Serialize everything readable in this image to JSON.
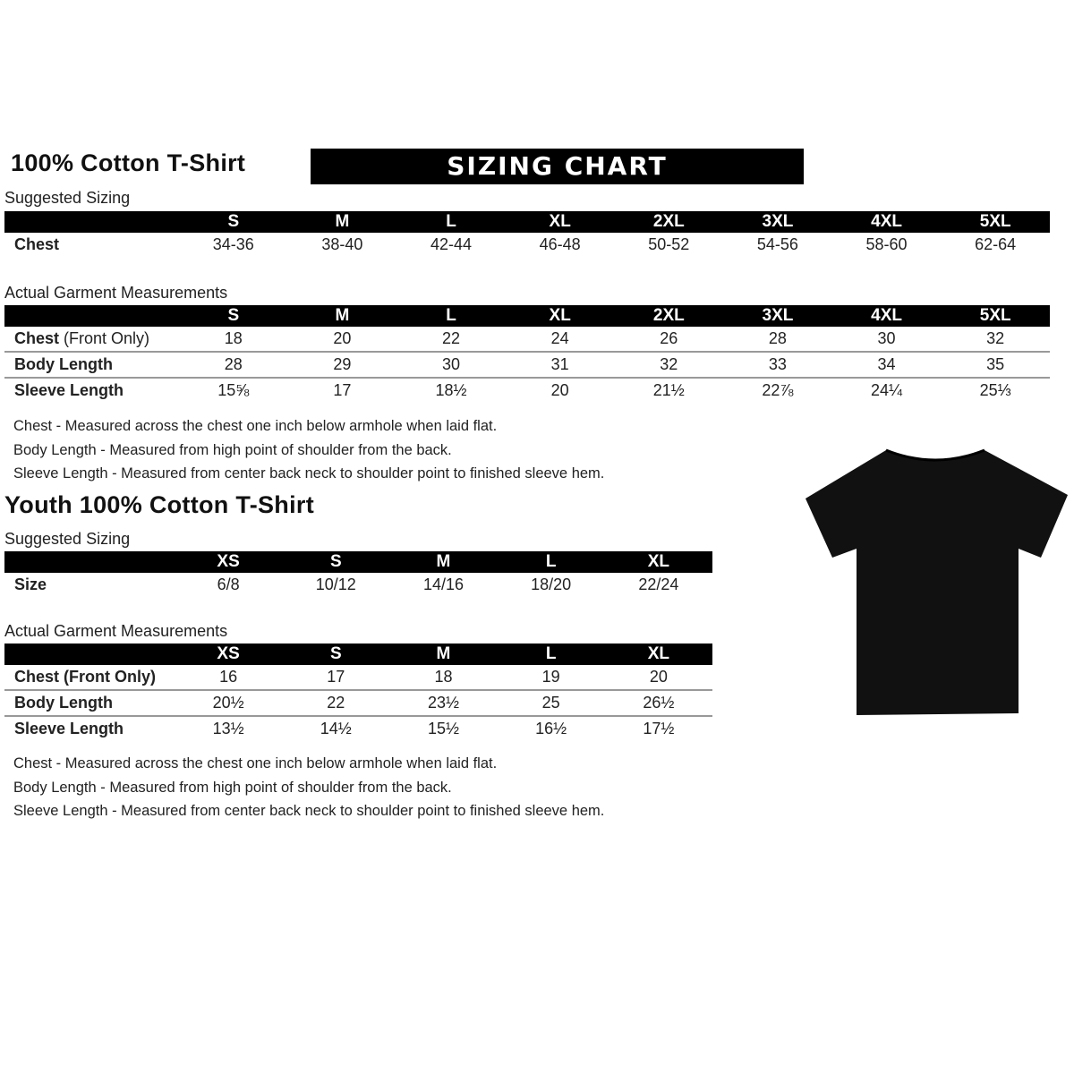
{
  "banner": "SIZING CHART",
  "adult": {
    "title": "100% Cotton T-Shirt",
    "suggested_label": "Suggested Sizing",
    "sizes": [
      "S",
      "M",
      "L",
      "XL",
      "2XL",
      "3XL",
      "4XL",
      "5XL"
    ],
    "suggested_rows": [
      {
        "label": "Chest",
        "values": [
          "34-36",
          "38-40",
          "42-44",
          "46-48",
          "50-52",
          "54-56",
          "58-60",
          "62-64"
        ]
      }
    ],
    "actual_label": "Actual Garment Measurements",
    "actual_rows": [
      {
        "label": "Chest",
        "label_note": "(Front Only)",
        "values": [
          "18",
          "20",
          "22",
          "24",
          "26",
          "28",
          "30",
          "32"
        ]
      },
      {
        "label": "Body Length",
        "values": [
          "28",
          "29",
          "30",
          "31",
          "32",
          "33",
          "34",
          "35"
        ]
      },
      {
        "label": "Sleeve Length",
        "values": [
          "15⅝",
          "17",
          "18½",
          "20",
          "21½",
          "22⅞",
          "24¼",
          "25⅓"
        ]
      }
    ],
    "notes": [
      "Chest - Measured across the chest one inch below armhole when laid flat.",
      "Body Length - Measured from high point of shoulder from the back.",
      "Sleeve Length - Measured from center back neck to shoulder point to finished sleeve hem."
    ]
  },
  "youth": {
    "title": "Youth 100% Cotton T-Shirt",
    "suggested_label": "Suggested Sizing",
    "sizes": [
      "XS",
      "S",
      "M",
      "L",
      "XL"
    ],
    "suggested_rows": [
      {
        "label": "Size",
        "values": [
          "6/8",
          "10/12",
          "14/16",
          "18/20",
          "22/24"
        ]
      }
    ],
    "actual_label": "Actual Garment Measurements",
    "actual_rows": [
      {
        "label": "Chest (Front Only)",
        "values": [
          "16",
          "17",
          "18",
          "19",
          "20"
        ]
      },
      {
        "label": "Body Length",
        "values": [
          "20½",
          "22",
          "23½",
          "25",
          "26½"
        ]
      },
      {
        "label": "Sleeve Length",
        "values": [
          "13½",
          "14½",
          "15½",
          "16½",
          "17½"
        ]
      }
    ],
    "notes": [
      "Chest - Measured across the chest one inch below armhole when laid flat.",
      "Body Length - Measured from high point of shoulder from the back.",
      "Sleeve Length - Measured from center back neck to shoulder point to finished sleeve hem."
    ]
  },
  "colors": {
    "header_bg": "#000000",
    "shirt": "#111111"
  },
  "image": {
    "icon": "black-tshirt-icon"
  }
}
